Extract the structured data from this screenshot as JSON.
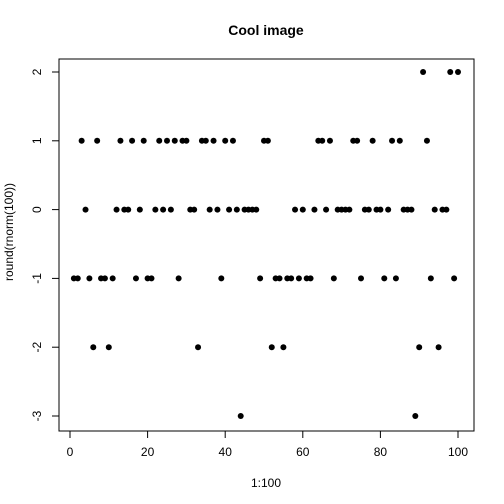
{
  "chart_data": {
    "type": "scatter",
    "title": "Cool image",
    "xlabel": "1:100",
    "ylabel": "round(rnorm(100))",
    "xlim": [
      0,
      100
    ],
    "ylim": [
      -3,
      2
    ],
    "xticks": [
      0,
      20,
      40,
      60,
      80,
      100
    ],
    "yticks": [
      -3,
      -2,
      -1,
      0,
      1,
      2
    ],
    "grid": false,
    "series": [
      {
        "x": [
          1,
          2,
          3,
          4,
          5,
          6,
          7,
          8,
          9,
          10,
          11,
          12,
          13,
          14,
          15,
          16,
          17,
          18,
          19,
          20,
          21,
          22,
          23,
          24,
          25,
          26,
          27,
          28,
          29,
          30,
          31,
          32,
          33,
          34,
          35,
          36,
          37,
          38,
          39,
          40,
          41,
          42,
          43,
          44,
          45,
          46,
          47,
          48,
          49,
          50,
          51,
          52,
          53,
          54,
          55,
          56,
          57,
          58,
          59,
          60,
          61,
          62,
          63,
          64,
          65,
          66,
          67,
          68,
          69,
          70,
          71,
          72,
          73,
          74,
          75,
          76,
          77,
          78,
          79,
          80,
          81,
          82,
          83,
          84,
          85,
          86,
          87,
          88,
          89,
          90,
          91,
          92,
          93,
          94,
          95,
          96,
          97,
          98,
          99,
          100
        ],
        "y": [
          -1,
          -1,
          1,
          0,
          -1,
          -2,
          1,
          -1,
          -1,
          -2,
          -1,
          0,
          1,
          0,
          0,
          1,
          -1,
          0,
          1,
          -1,
          -1,
          0,
          1,
          0,
          1,
          0,
          1,
          -1,
          1,
          1,
          0,
          0,
          -2,
          1,
          1,
          0,
          1,
          0,
          -1,
          1,
          0,
          1,
          0,
          -3,
          0,
          0,
          0,
          0,
          -1,
          1,
          1,
          -2,
          -1,
          -1,
          -2,
          -1,
          -1,
          0,
          -1,
          0,
          -1,
          -1,
          0,
          1,
          1,
          0,
          1,
          -1,
          0,
          0,
          0,
          0,
          1,
          1,
          -1,
          0,
          0,
          1,
          0,
          0,
          -1,
          0,
          1,
          -1,
          1,
          0,
          0,
          0,
          -3,
          -2,
          2,
          1,
          -1,
          0,
          -2,
          0,
          0,
          2,
          -1,
          2
        ]
      }
    ]
  }
}
